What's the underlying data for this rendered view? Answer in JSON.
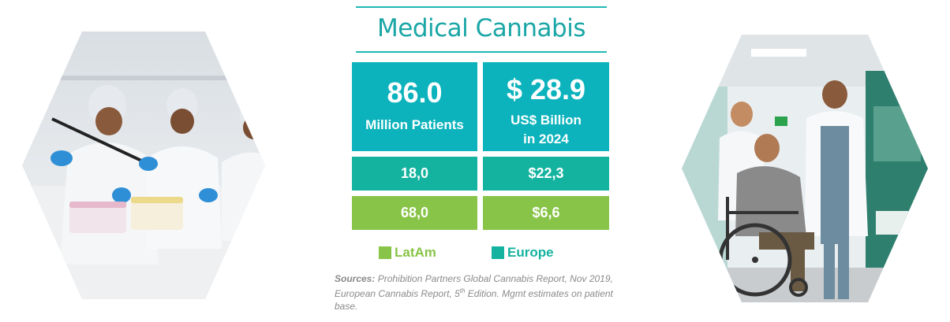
{
  "title": "Medical Cannabis",
  "colors": {
    "teal": "#0cb3bc",
    "europe": "#14b39f",
    "latam": "#88c447",
    "title": "#1aa6a6"
  },
  "stats": {
    "patients": {
      "value": "86.0",
      "label": "Million Patients"
    },
    "market": {
      "value": "$ 28.9",
      "label_line1": "US$ Billion",
      "label_line2": "in 2024"
    }
  },
  "europe": {
    "patients": "18,0",
    "market": "$22,3"
  },
  "latam": {
    "patients": "68,0",
    "market": "$6,6"
  },
  "legend": {
    "latam": "LatAm",
    "europe": "Europe"
  },
  "sources": {
    "label": "Sources:",
    "text_part1": " Prohibition Partners Global Cannabis Report, Nov 2019, European Cannabis Report, 5",
    "superscript": "th",
    "text_part2": " Edition. Mgmt estimates on patient base."
  },
  "images": {
    "left": "lab-workers-photo",
    "right": "wheelchair-patient-photo"
  }
}
